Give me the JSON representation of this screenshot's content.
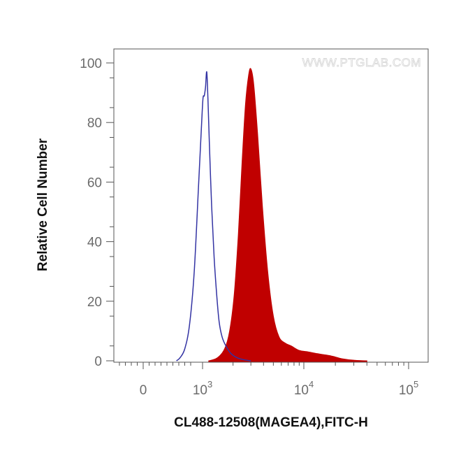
{
  "chart_data": {
    "type": "area",
    "xlabel": "CL488-12508(MAGEA4),FITC-H",
    "ylabel": "Relative Cell Number",
    "watermark": "WWW.PTGLAB.COM",
    "x_scale": "biexponential",
    "x_ticks": [
      {
        "value": 0,
        "base": "0",
        "exp": ""
      },
      {
        "value": 1000,
        "base": "10",
        "exp": "3"
      },
      {
        "value": 10000,
        "base": "10",
        "exp": "4"
      },
      {
        "value": 100000,
        "base": "10",
        "exp": "5"
      }
    ],
    "ylim": [
      0,
      100
    ],
    "y_ticks": [
      0,
      20,
      40,
      60,
      80,
      100
    ],
    "grid": false,
    "legend": "none",
    "series": [
      {
        "style": "outline",
        "color": "#3333a3",
        "points": [
          [
            560,
            0
          ],
          [
            620,
            1
          ],
          [
            700,
            4
          ],
          [
            780,
            12
          ],
          [
            860,
            30
          ],
          [
            930,
            58
          ],
          [
            980,
            78
          ],
          [
            1010,
            88
          ],
          [
            1040,
            89
          ],
          [
            1070,
            92
          ],
          [
            1100,
            97
          ],
          [
            1130,
            88
          ],
          [
            1170,
            72
          ],
          [
            1230,
            52
          ],
          [
            1300,
            35
          ],
          [
            1380,
            22
          ],
          [
            1460,
            13
          ],
          [
            1560,
            8
          ],
          [
            1700,
            5
          ],
          [
            1900,
            2.5
          ],
          [
            2200,
            1
          ],
          [
            2600,
            0.3
          ],
          [
            3000,
            0
          ]
        ]
      },
      {
        "style": "filled",
        "color": "#c00000",
        "points": [
          [
            1150,
            0
          ],
          [
            1400,
            1
          ],
          [
            1650,
            4
          ],
          [
            1850,
            10
          ],
          [
            2050,
            22
          ],
          [
            2250,
            42
          ],
          [
            2450,
            66
          ],
          [
            2650,
            86
          ],
          [
            2850,
            96
          ],
          [
            3000,
            98
          ],
          [
            3200,
            93
          ],
          [
            3500,
            76
          ],
          [
            3900,
            52
          ],
          [
            4400,
            30
          ],
          [
            5000,
            15
          ],
          [
            5700,
            8
          ],
          [
            6500,
            6
          ],
          [
            7500,
            5
          ],
          [
            9000,
            3.5
          ],
          [
            11000,
            3
          ],
          [
            13000,
            2.5
          ],
          [
            16000,
            2
          ],
          [
            19000,
            1.5
          ],
          [
            23000,
            0.7
          ],
          [
            30000,
            0.2
          ],
          [
            40000,
            0
          ]
        ]
      }
    ]
  }
}
